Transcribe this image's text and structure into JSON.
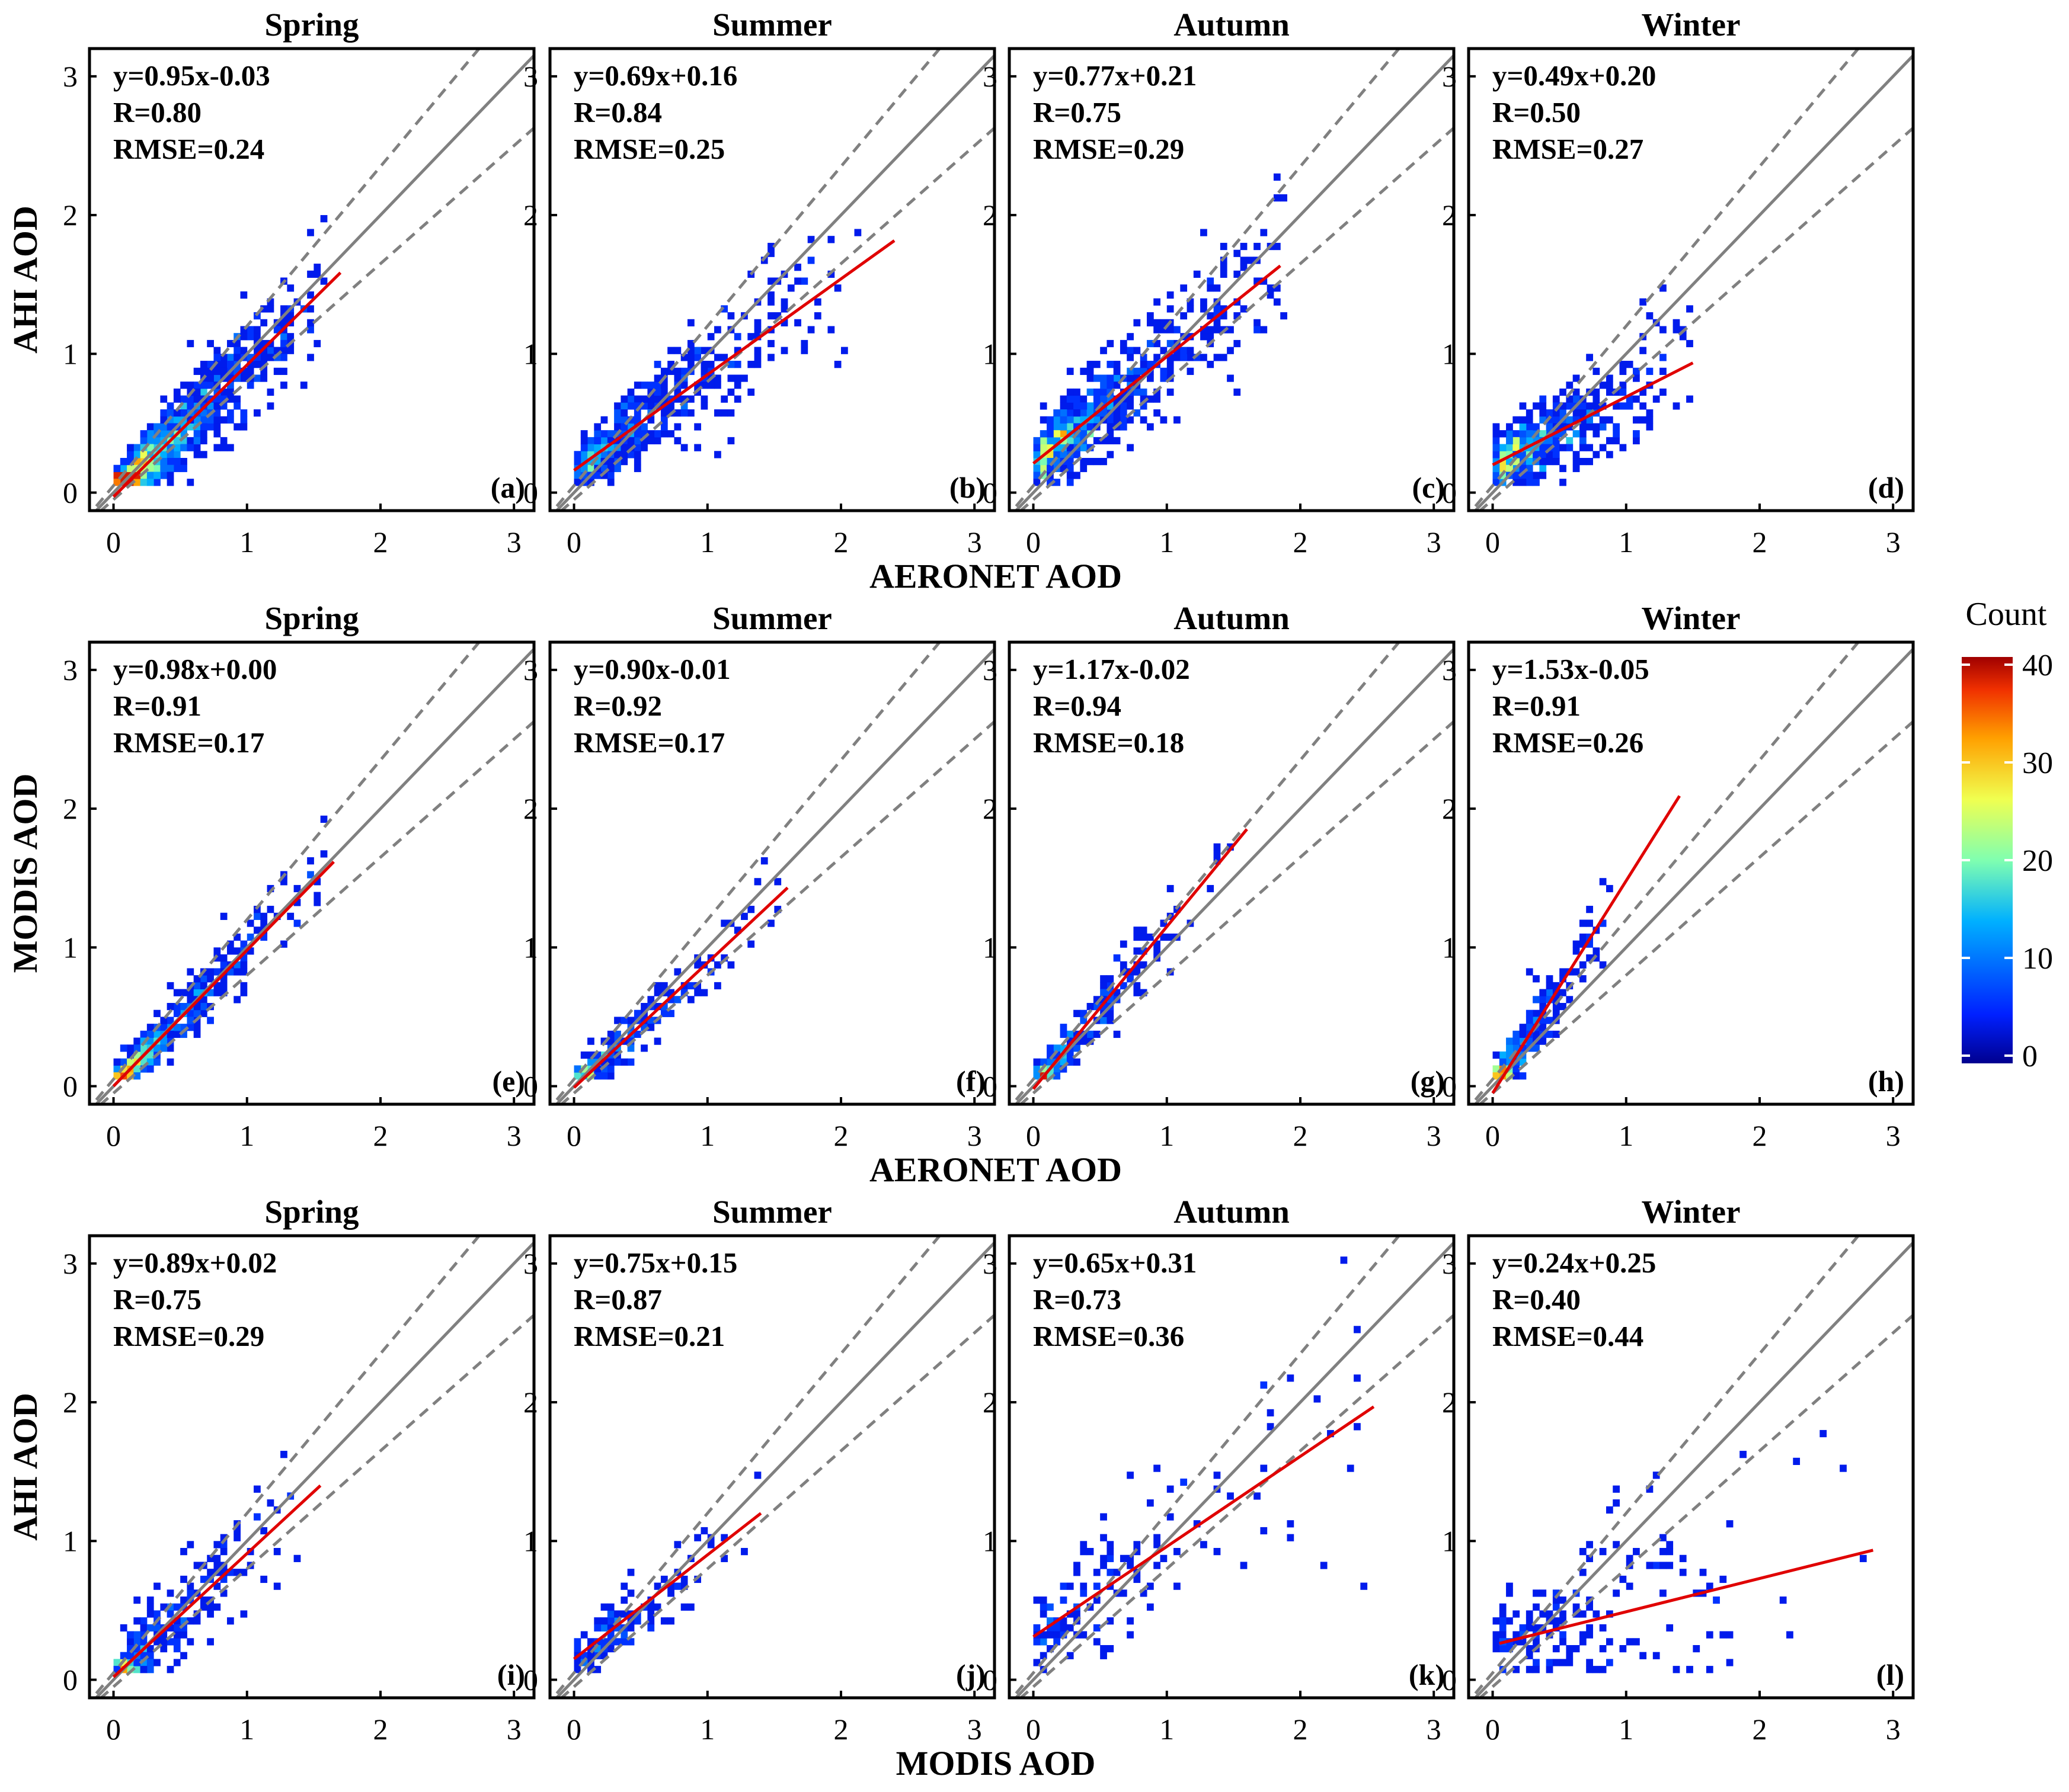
{
  "chart_data": {
    "type": "heatmap",
    "title": "",
    "colorbar": {
      "label": "Count",
      "ticks": [
        "0",
        "10",
        "20",
        "30",
        "40"
      ],
      "range": [
        0,
        40
      ],
      "colormap": "jet"
    },
    "axis_ticks": [
      "0",
      "1",
      "2",
      "3"
    ],
    "xlim": [
      -0.18,
      3.15
    ],
    "ylim": [
      -0.13,
      3.2
    ],
    "row_xlabels": [
      "AERONET AOD",
      "AERONET AOD",
      "MODIS AOD"
    ],
    "row_ylabels": [
      "AHI AOD",
      "MODIS AOD",
      "AHI AOD"
    ],
    "reference_lines": {
      "one_to_one": "y=x",
      "envelope": "y=x±(0.05+0.15x)"
    },
    "panels": [
      {
        "season": "Spring",
        "tag": "(a)",
        "eq": "y=0.95x-0.03",
        "r": "R=0.80",
        "rmse": "RMSE=0.24",
        "slope": 0.95,
        "intercept": -0.03,
        "fit_x": [
          0,
          1.7
        ],
        "n": 900,
        "xmax": 1.6
      },
      {
        "season": "Summer",
        "tag": "(b)",
        "eq": "y=0.69x+0.16",
        "r": "R=0.84",
        "rmse": "RMSE=0.25",
        "slope": 0.69,
        "intercept": 0.16,
        "fit_x": [
          0,
          2.4
        ],
        "n": 420,
        "xmax": 2.2
      },
      {
        "season": "Autumn",
        "tag": "(c)",
        "eq": "y=0.77x+0.21",
        "r": "R=0.75",
        "rmse": "RMSE=0.29",
        "slope": 0.77,
        "intercept": 0.21,
        "fit_x": [
          0,
          1.85
        ],
        "n": 650,
        "xmax": 1.9
      },
      {
        "season": "Winter",
        "tag": "(d)",
        "eq": "y=0.49x+0.20",
        "r": "R=0.50",
        "rmse": "RMSE=0.27",
        "slope": 0.49,
        "intercept": 0.2,
        "fit_x": [
          0,
          1.5
        ],
        "n": 500,
        "xmax": 1.5
      },
      {
        "season": "Spring",
        "tag": "(e)",
        "eq": "y=0.98x+0.00",
        "r": "R=0.91",
        "rmse": "RMSE=0.17",
        "slope": 0.98,
        "intercept": 0.0,
        "fit_x": [
          0,
          1.65
        ],
        "n": 420,
        "xmax": 1.6
      },
      {
        "season": "Summer",
        "tag": "(f)",
        "eq": "y=0.90x-0.01",
        "r": "R=0.92",
        "rmse": "RMSE=0.17",
        "slope": 0.9,
        "intercept": -0.01,
        "fit_x": [
          0,
          1.6
        ],
        "n": 200,
        "xmax": 1.6
      },
      {
        "season": "Autumn",
        "tag": "(g)",
        "eq": "y=1.17x-0.02",
        "r": "R=0.94",
        "rmse": "RMSE=0.18",
        "slope": 1.17,
        "intercept": -0.02,
        "fit_x": [
          0,
          1.6
        ],
        "n": 220,
        "xmax": 1.5
      },
      {
        "season": "Winter",
        "tag": "(h)",
        "eq": "y=1.53x-0.05",
        "r": "R=0.91",
        "rmse": "RMSE=0.26",
        "slope": 1.53,
        "intercept": -0.05,
        "fit_x": [
          0,
          1.4
        ],
        "n": 240,
        "xmax": 0.9
      },
      {
        "season": "Spring",
        "tag": "(i)",
        "eq": "y=0.89x+0.02",
        "r": "R=0.75",
        "rmse": "RMSE=0.29",
        "slope": 0.89,
        "intercept": 0.02,
        "fit_x": [
          0,
          1.55
        ],
        "n": 240,
        "xmax": 1.5
      },
      {
        "season": "Summer",
        "tag": "(j)",
        "eq": "y=0.75x+0.15",
        "r": "R=0.87",
        "rmse": "RMSE=0.21",
        "slope": 0.75,
        "intercept": 0.15,
        "fit_x": [
          0,
          1.4
        ],
        "n": 120,
        "xmax": 1.4
      },
      {
        "season": "Autumn",
        "tag": "(k)",
        "eq": "y=0.65x+0.31",
        "r": "R=0.73",
        "rmse": "RMSE=0.36",
        "slope": 0.65,
        "intercept": 0.31,
        "fit_x": [
          0,
          2.55
        ],
        "n": 140,
        "xmax": 2.5
      },
      {
        "season": "Winter",
        "tag": "(l)",
        "eq": "y=0.24x+0.25",
        "r": "R=0.40",
        "rmse": "RMSE=0.44",
        "slope": 0.24,
        "intercept": 0.25,
        "fit_x": [
          0.05,
          2.85
        ],
        "n": 160,
        "xmax": 2.8
      }
    ]
  }
}
